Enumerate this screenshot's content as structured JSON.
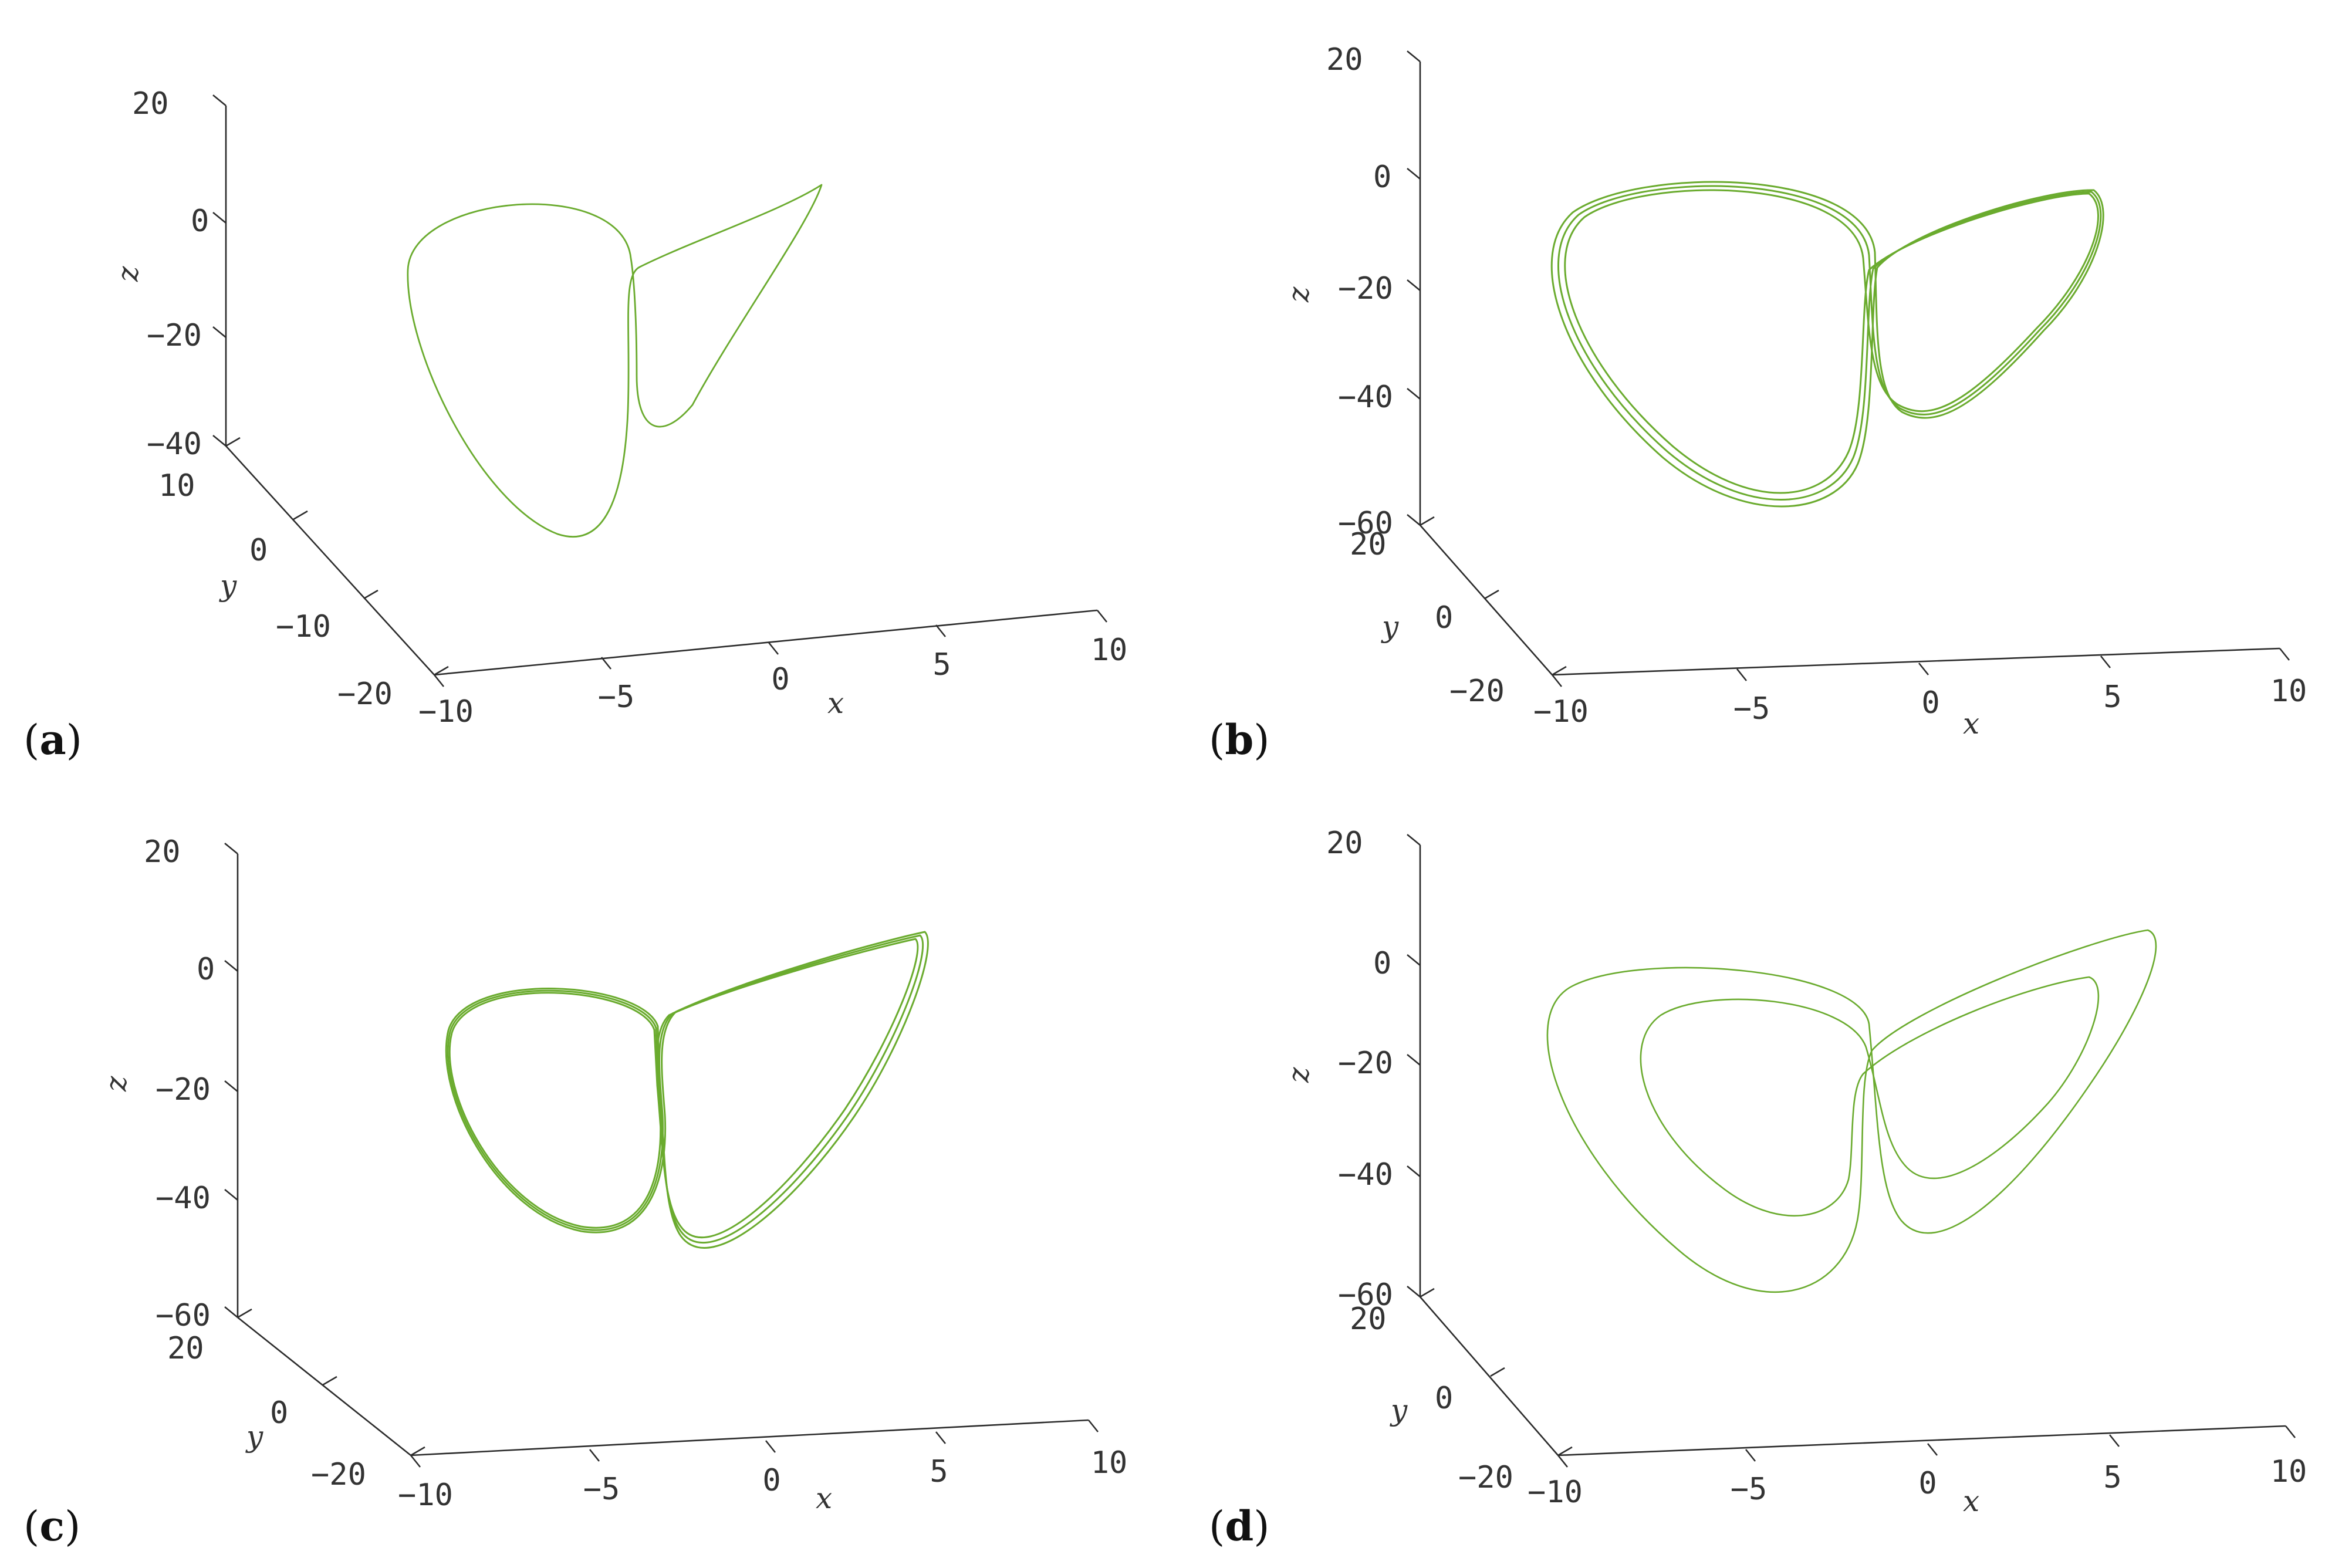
{
  "chart_data": [
    {
      "type": "line",
      "panel_label": "a",
      "style": {
        "line_color": "#6aab2e"
      },
      "axes": {
        "x": {
          "label": "x",
          "ticks": [
            "−10",
            "−5",
            "0",
            "5",
            "10"
          ],
          "range": [
            -10,
            10
          ]
        },
        "y": {
          "label": "y",
          "ticks": [
            "−20",
            "−10",
            "0",
            "10"
          ],
          "range": [
            -20,
            10
          ]
        },
        "z": {
          "label": "z",
          "ticks": [
            "−40",
            "−20",
            "0",
            "20"
          ],
          "range": [
            -40,
            20
          ]
        }
      },
      "series": [
        {
          "loops": 1,
          "description_points": [
            {
              "x": -9.5,
              "y": 0,
              "z": -2
            },
            {
              "x": -2.5,
              "y": 0,
              "z": -3
            },
            {
              "x": -1.5,
              "y": 0,
              "z": -10
            },
            {
              "x": -2,
              "y": 0,
              "z": -45
            },
            {
              "x": -6.5,
              "y": 0,
              "z": -50
            },
            {
              "x": -10,
              "y": 0,
              "z": -12
            },
            {
              "x": 6.5,
              "y": 0,
              "z": 6
            },
            {
              "x": 0,
              "y": 0,
              "z": -34
            }
          ]
        }
      ]
    },
    {
      "type": "line",
      "panel_label": "b",
      "style": {
        "line_color": "#6aab2e"
      },
      "axes": {
        "x": {
          "label": "x",
          "ticks": [
            "−10",
            "−5",
            "0",
            "5",
            "10"
          ],
          "range": [
            -10,
            10
          ]
        },
        "y": {
          "label": "y",
          "ticks": [
            "−20",
            "0",
            "20"
          ],
          "range": [
            -20,
            20
          ]
        },
        "z": {
          "label": "z",
          "ticks": [
            "−60",
            "−40",
            "−20",
            "0",
            "20"
          ],
          "range": [
            -60,
            20
          ]
        }
      },
      "series": [
        {
          "loops": 3,
          "description_points": [
            {
              "x": -9.5,
              "y": 0,
              "z": -4
            },
            {
              "x": -2.5,
              "y": 0,
              "z": -6
            },
            {
              "x": -2,
              "y": 0,
              "z": -48
            },
            {
              "x": -5.5,
              "y": 0,
              "z": -58
            },
            {
              "x": -10,
              "y": 0,
              "z": -14
            },
            {
              "x": 7.5,
              "y": 0,
              "z": -5
            },
            {
              "x": 1.5,
              "y": 0,
              "z": -38
            }
          ]
        }
      ]
    },
    {
      "type": "line",
      "panel_label": "c",
      "style": {
        "line_color": "#6aab2e"
      },
      "axes": {
        "x": {
          "label": "x",
          "ticks": [
            "−10",
            "−5",
            "0",
            "5",
            "10"
          ],
          "range": [
            -10,
            10
          ]
        },
        "y": {
          "label": "y",
          "ticks": [
            "−20",
            "0",
            "20"
          ],
          "range": [
            -20,
            20
          ]
        },
        "z": {
          "label": "z",
          "ticks": [
            "−60",
            "−40",
            "−20",
            "0",
            "20"
          ],
          "range": [
            -60,
            20
          ]
        }
      },
      "series": [
        {
          "loops": 3,
          "description_points": [
            {
              "x": -8,
              "y": 0,
              "z": -5
            },
            {
              "x": -2.5,
              "y": 0,
              "z": -12
            },
            {
              "x": -3.5,
              "y": 0,
              "z": -45
            },
            {
              "x": -9,
              "y": 0,
              "z": -18
            },
            {
              "x": 7.5,
              "y": 0,
              "z": -2
            },
            {
              "x": 0.5,
              "y": 0,
              "z": -48
            }
          ]
        }
      ]
    },
    {
      "type": "line",
      "panel_label": "d",
      "style": {
        "line_color": "#6aab2e"
      },
      "axes": {
        "x": {
          "label": "x",
          "ticks": [
            "−10",
            "−5",
            "0",
            "5",
            "10"
          ],
          "range": [
            -10,
            10
          ]
        },
        "y": {
          "label": "y",
          "ticks": [
            "−20",
            "0",
            "20"
          ],
          "range": [
            -20,
            20
          ]
        },
        "z": {
          "label": "z",
          "ticks": [
            "−60",
            "−40",
            "−20",
            "0",
            "20"
          ],
          "range": [
            -60,
            20
          ]
        }
      },
      "series": [
        {
          "loops": 2,
          "description_points": [
            {
              "x": -10,
              "y": 0,
              "z": -10
            },
            {
              "x": -2,
              "y": 0,
              "z": -12
            },
            {
              "x": -1.5,
              "y": 0,
              "z": -42
            },
            {
              "x": -5,
              "y": 0,
              "z": -58
            },
            {
              "x": 7.5,
              "y": 0,
              "z": 5
            },
            {
              "x": 2,
              "y": 0,
              "z": -48
            }
          ]
        }
      ]
    }
  ]
}
